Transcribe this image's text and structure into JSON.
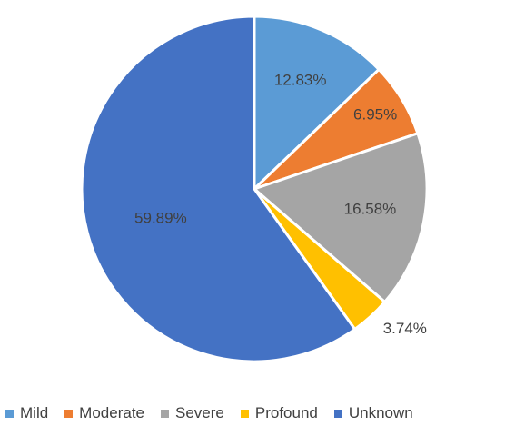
{
  "chart_data": {
    "type": "pie",
    "categories": [
      "Mild",
      "Moderate",
      "Severe",
      "Profound",
      "Unknown"
    ],
    "values": [
      12.83,
      6.95,
      16.58,
      3.74,
      59.89
    ],
    "labels": [
      "12.83%",
      "6.95%",
      "16.58%",
      "3.74%",
      "59.89%"
    ],
    "colors": [
      "#5b9bd5",
      "#ed7d31",
      "#a5a5a5",
      "#ffc000",
      "#4472c4"
    ],
    "title": "",
    "legend_position": "bottom"
  }
}
